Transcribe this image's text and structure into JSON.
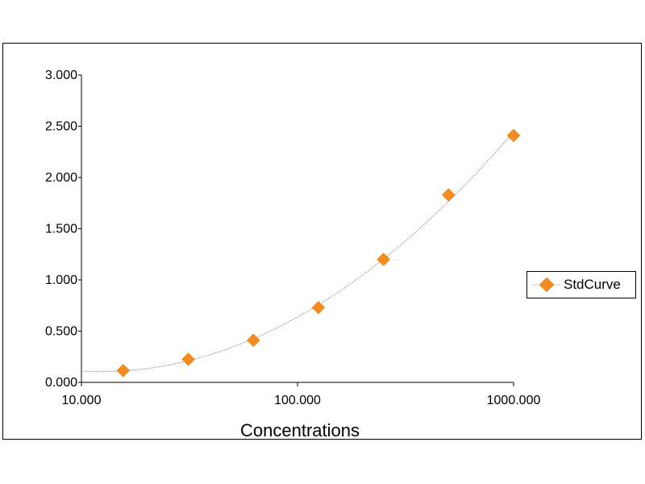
{
  "chart_data": {
    "type": "scatter",
    "title": "",
    "xlabel": "Concentrations",
    "ylabel": "",
    "x_scale": "log",
    "xlim": [
      10,
      1000
    ],
    "ylim": [
      0,
      3
    ],
    "x_ticks": [
      10,
      100,
      1000
    ],
    "x_tick_labels": [
      "10.000",
      "100.000",
      "1000.000"
    ],
    "y_ticks": [
      0,
      0.5,
      1,
      1.5,
      2,
      2.5,
      3
    ],
    "y_tick_labels": [
      "0.000",
      "0.500",
      "1.000",
      "1.500",
      "2.000",
      "2.500",
      "3.000"
    ],
    "grid": false,
    "legend_position": "right",
    "series": [
      {
        "name": "StdCurve",
        "color": "#F28C1E",
        "marker": "diamond",
        "line_style": "dotted-fit",
        "x": [
          15.6,
          31.25,
          62.5,
          125,
          250,
          500,
          1000
        ],
        "y": [
          0.115,
          0.225,
          0.41,
          0.73,
          1.2,
          1.83,
          2.41
        ]
      }
    ]
  }
}
